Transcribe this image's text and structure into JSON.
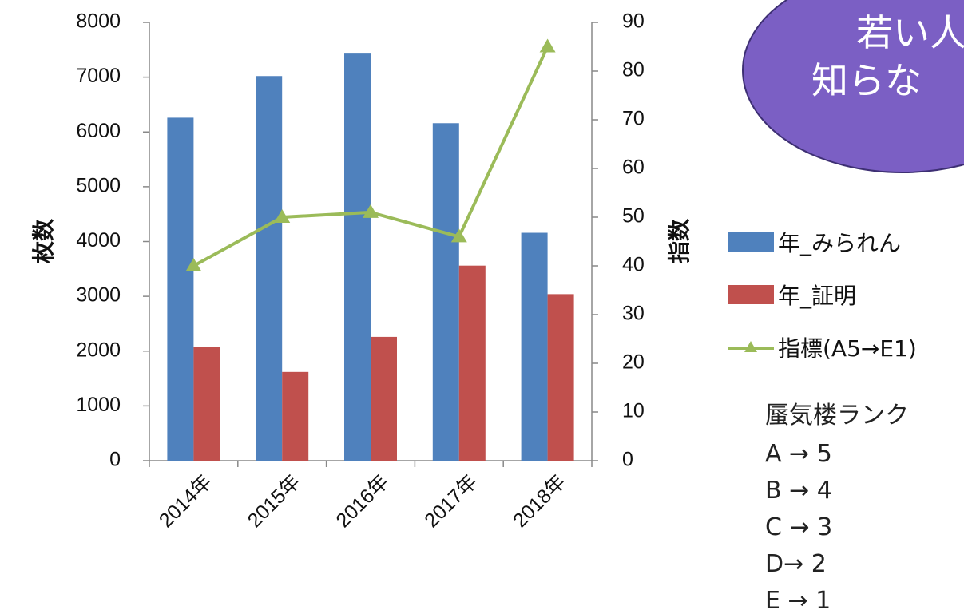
{
  "chart_data": {
    "type": "bar",
    "categories": [
      "2014年",
      "2015年",
      "2016年",
      "2017年",
      "2018年"
    ],
    "series": [
      {
        "name": "年_みられん",
        "kind": "bar",
        "axis": "left",
        "color": "#4f81bd",
        "values": [
          6260,
          7020,
          7430,
          6160,
          4160
        ]
      },
      {
        "name": "年_証明",
        "kind": "bar",
        "axis": "left",
        "color": "#c0504d",
        "values": [
          2080,
          1620,
          2260,
          3560,
          3040
        ]
      },
      {
        "name": "指標(A5→E1)",
        "kind": "line",
        "marker": "triangle",
        "axis": "right",
        "color": "#9bbb59",
        "values": [
          40,
          50,
          51,
          46,
          85
        ]
      }
    ],
    "ylabel": "枚数",
    "y2label": "指数",
    "ylim": [
      0,
      8000
    ],
    "y2lim": [
      0,
      90
    ],
    "yticks": [
      "0",
      "1000",
      "2000",
      "3000",
      "4000",
      "5000",
      "6000",
      "7000",
      "8000"
    ],
    "y2ticks": [
      "0",
      "10",
      "20",
      "30",
      "40",
      "50",
      "60",
      "70",
      "80",
      "90"
    ],
    "grid": false,
    "legend_position": "right"
  },
  "bubble": {
    "line1": "若い人",
    "line2": "知らな",
    "color": "#7b5fc4"
  },
  "rank_box": {
    "title": "蜃気楼ランク",
    "lines": [
      "A → 5",
      "B → 4",
      "C → 3",
      "D→ 2",
      "E → 1"
    ]
  }
}
